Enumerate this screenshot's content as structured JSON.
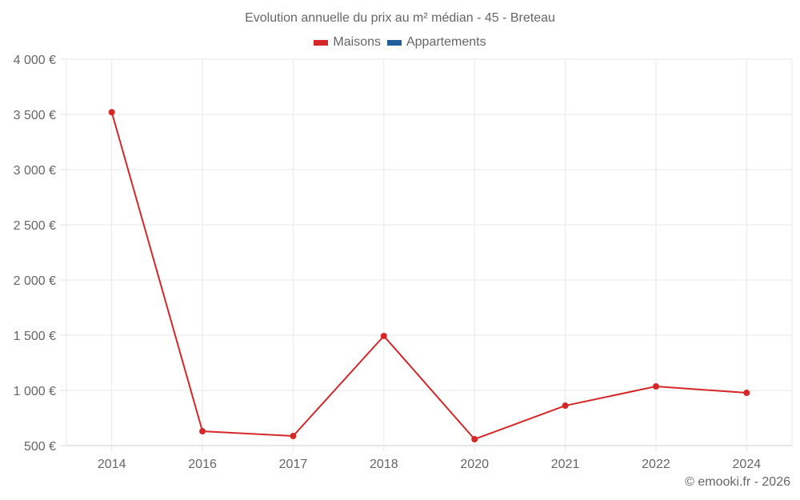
{
  "chart_data": {
    "type": "line",
    "title": "Evolution annuelle du prix au m² médian - 45 - Breteau",
    "xlabel": "",
    "ylabel": "",
    "categories": [
      "2014",
      "2016",
      "2017",
      "2018",
      "2020",
      "2021",
      "2022",
      "2024"
    ],
    "series": [
      {
        "name": "Maisons",
        "color": "#d62728",
        "values": [
          3520,
          630,
          587,
          1493,
          558,
          862,
          1036,
          978
        ]
      },
      {
        "name": "Appartements",
        "color": "#1f5f99",
        "values": []
      }
    ],
    "y_ticks": [
      "500 €",
      "1 000 €",
      "1 500 €",
      "2 000 €",
      "2 500 €",
      "3 000 €",
      "3 500 €",
      "4 000 €"
    ],
    "ylim": [
      500,
      4000
    ],
    "grid": true,
    "legend_position": "top"
  },
  "legend": [
    {
      "label": "Maisons",
      "color": "#d62728"
    },
    {
      "label": "Appartements",
      "color": "#1f5f99"
    }
  ],
  "credit": "© emooki.fr - 2026"
}
